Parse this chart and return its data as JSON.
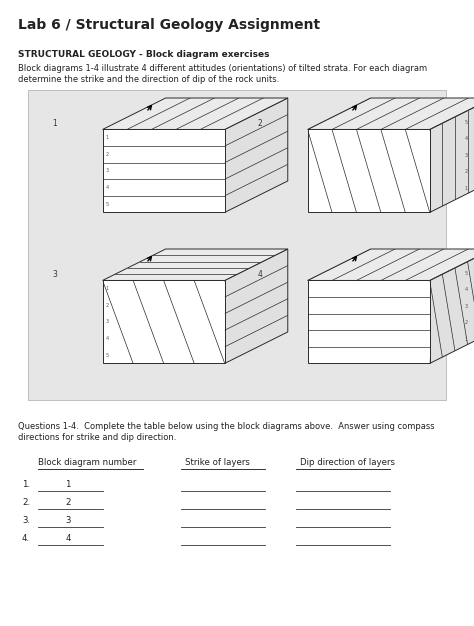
{
  "title": "Lab 6 / Structural Geology Assignment",
  "subtitle": "STRUCTURAL GEOLOGY - Block diagram exercises",
  "body_text1": "Block diagrams 1-4 illustrate 4 different attitudes (orientations) of tilted strata. For each diagram",
  "body_text2": "determine the strike and the direction of dip of the rock units.",
  "questions_text1": "Questions 1-4.  Complete the table below using the block diagrams above.  Answer using compass",
  "questions_text2": "directions for strike and dip direction.",
  "col_headers": [
    "Block diagram number",
    "Strike of layers",
    "Dip direction of layers"
  ],
  "row_nums": [
    "1.",
    "2.",
    "3.",
    "4."
  ],
  "row_vals": [
    "1",
    "2",
    "3",
    "4"
  ],
  "bg_color": "#ffffff",
  "box_bg": "#e6e6e6",
  "text_color": "#222222",
  "edge_color": "#2a2a2a",
  "title_fs": 10,
  "sub_fs": 6.5,
  "body_fs": 6.0,
  "table_fs": 6.2
}
